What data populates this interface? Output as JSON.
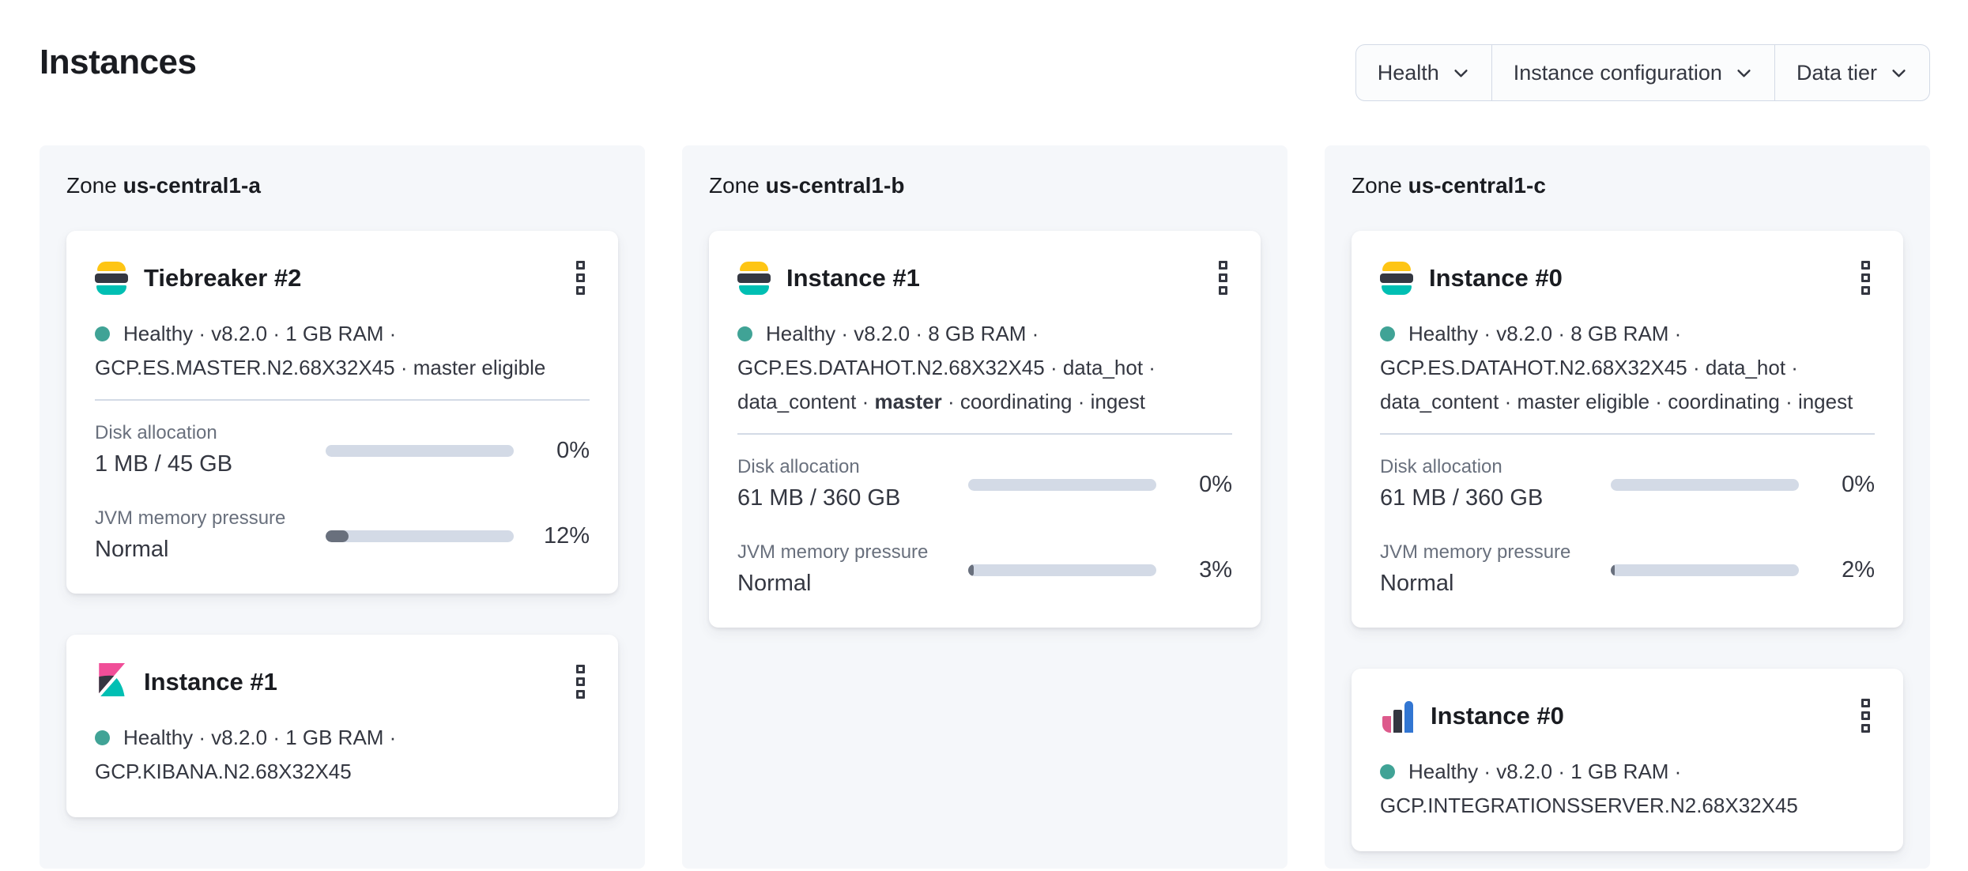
{
  "page": {
    "title": "Instances"
  },
  "filters": [
    {
      "label": "Health"
    },
    {
      "label": "Instance configuration"
    },
    {
      "label": "Data tier"
    }
  ],
  "colors": {
    "health_dot": "#40a396",
    "es_yellow": "#fec514",
    "es_navy": "#343741",
    "es_teal": "#00bfb3",
    "kibana_pink": "#f04e98",
    "integrations_pink": "#dd5a8c",
    "integrations_navy": "#343741",
    "integrations_blue": "#3276d2",
    "bar_track": "#d3dae6",
    "bar_fill": "#69707d"
  },
  "zones": [
    {
      "label_prefix": "Zone",
      "name": "us-central1-a",
      "cards": [
        {
          "logo": "elasticsearch",
          "title": "Tiebreaker #2",
          "meta_lines": [
            {
              "health_dot": true,
              "segments": [
                {
                  "t": "Healthy · v8.2.0 · 1 GB RAM ·"
                }
              ]
            },
            {
              "segments": [
                {
                  "t": "GCP.ES.MASTER.N2.68X32X45 · master eligible"
                }
              ]
            }
          ],
          "metrics": [
            {
              "label": "Disk allocation",
              "value": "1 MB / 45 GB",
              "percent": "0%",
              "fill_pct": 0
            },
            {
              "label": "JVM memory pressure",
              "value": "Normal",
              "percent": "12%",
              "fill_pct": 12
            }
          ]
        },
        {
          "logo": "kibana",
          "title": "Instance #1",
          "meta_lines": [
            {
              "health_dot": true,
              "segments": [
                {
                  "t": "Healthy · v8.2.0 · 1 GB RAM ·"
                }
              ]
            },
            {
              "segments": [
                {
                  "t": "GCP.KIBANA.N2.68X32X45"
                }
              ]
            }
          ],
          "metrics": []
        }
      ]
    },
    {
      "label_prefix": "Zone",
      "name": "us-central1-b",
      "cards": [
        {
          "logo": "elasticsearch",
          "title": "Instance #1",
          "meta_lines": [
            {
              "health_dot": true,
              "segments": [
                {
                  "t": "Healthy · v8.2.0 · 8 GB RAM ·"
                }
              ]
            },
            {
              "segments": [
                {
                  "t": "GCP.ES.DATAHOT.N2.68X32X45 · data_hot ·"
                }
              ]
            },
            {
              "segments": [
                {
                  "t": "data_content · "
                },
                {
                  "t": "master",
                  "bold": true
                },
                {
                  "t": " · coordinating · ingest"
                }
              ]
            }
          ],
          "metrics": [
            {
              "label": "Disk allocation",
              "value": "61 MB / 360 GB",
              "percent": "0%",
              "fill_pct": 0
            },
            {
              "label": "JVM memory pressure",
              "value": "Normal",
              "percent": "3%",
              "fill_pct": 3
            }
          ]
        }
      ]
    },
    {
      "label_prefix": "Zone",
      "name": "us-central1-c",
      "cards": [
        {
          "logo": "elasticsearch",
          "title": "Instance #0",
          "meta_lines": [
            {
              "health_dot": true,
              "segments": [
                {
                  "t": "Healthy · v8.2.0 · 8 GB RAM ·"
                }
              ]
            },
            {
              "segments": [
                {
                  "t": "GCP.ES.DATAHOT.N2.68X32X45 · data_hot ·"
                }
              ]
            },
            {
              "segments": [
                {
                  "t": "data_content · master eligible · coordinating · ingest"
                }
              ]
            }
          ],
          "metrics": [
            {
              "label": "Disk allocation",
              "value": "61 MB / 360 GB",
              "percent": "0%",
              "fill_pct": 0
            },
            {
              "label": "JVM memory pressure",
              "value": "Normal",
              "percent": "2%",
              "fill_pct": 2
            }
          ]
        },
        {
          "logo": "integrations-server",
          "title": "Instance #0",
          "meta_lines": [
            {
              "health_dot": true,
              "segments": [
                {
                  "t": "Healthy · v8.2.0 · 1 GB RAM ·"
                }
              ]
            },
            {
              "segments": [
                {
                  "t": "GCP.INTEGRATIONSSERVER.N2.68X32X45"
                }
              ]
            }
          ],
          "metrics": []
        }
      ]
    }
  ]
}
